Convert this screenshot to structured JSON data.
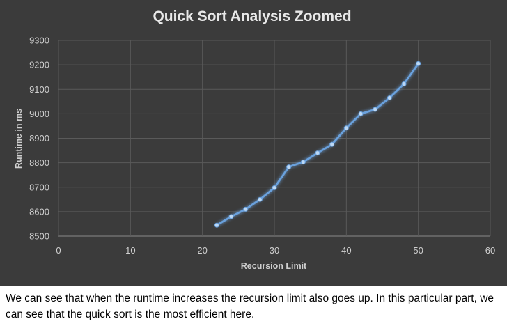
{
  "chart_data": {
    "type": "line",
    "title": "Quick Sort Analysis Zoomed",
    "xlabel": "Recursion Limit",
    "ylabel": "Runtime in ms",
    "xlim": [
      0,
      60
    ],
    "ylim": [
      8500,
      9300
    ],
    "x_ticks": [
      0,
      10,
      20,
      30,
      40,
      50,
      60
    ],
    "y_ticks": [
      8500,
      8600,
      8700,
      8800,
      8900,
      9000,
      9100,
      9200,
      9300
    ],
    "grid": true,
    "legend": "none",
    "series": [
      {
        "color": "#6aa1dd",
        "x": [
          22,
          24,
          26,
          28,
          30,
          32,
          34,
          36,
          38,
          40,
          42,
          44,
          46,
          48,
          50
        ],
        "y": [
          8545,
          8580,
          8610,
          8650,
          8698,
          8783,
          8803,
          8840,
          8875,
          8942,
          9000,
          9018,
          9065,
          9122,
          9205
        ]
      }
    ]
  },
  "caption": "We can see that when the runtime increases the recursion limit also goes up. In this particular part, we can see that the quick sort is the most efficient here."
}
